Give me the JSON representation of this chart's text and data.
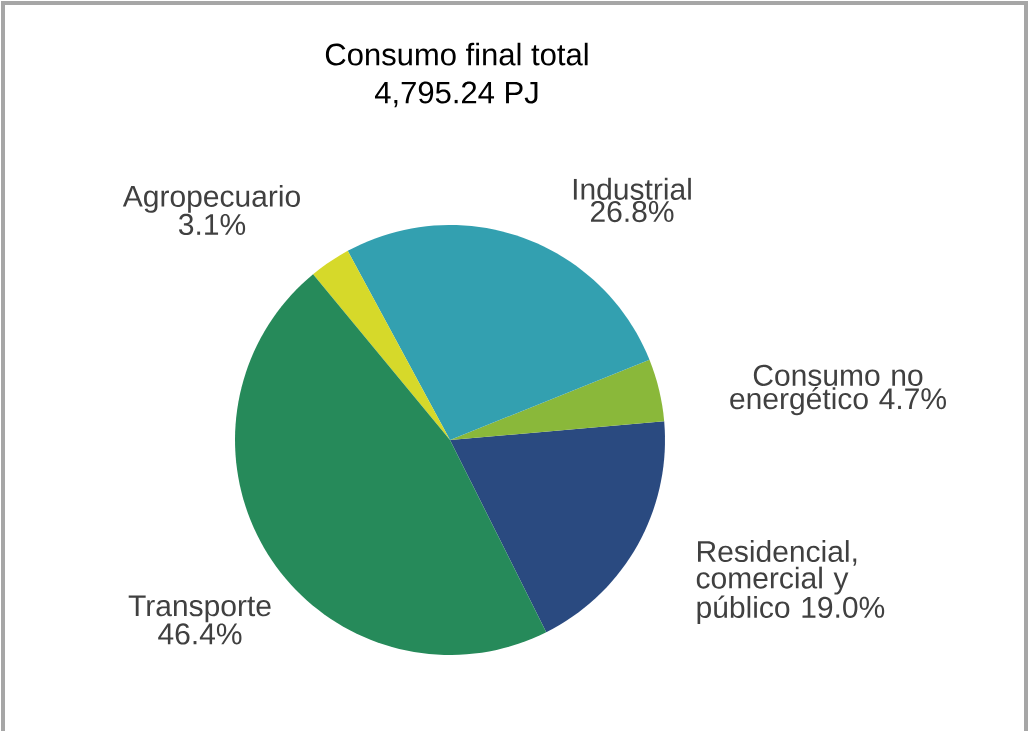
{
  "chart_data": {
    "type": "pie",
    "title": "Consumo final total",
    "subtitle": "4,795.24 PJ",
    "categories": [
      "Residencial, comercial y público",
      "Consumo no energético",
      "Industrial",
      "Agropecuario",
      "Transporte"
    ],
    "values": [
      19.0,
      4.7,
      26.8,
      3.1,
      46.4
    ],
    "value_labels": [
      "19.0%",
      "4.7%",
      "26.8%",
      "3.1%",
      "46.4%"
    ],
    "colors": [
      "#2a4a80",
      "#8ab83a",
      "#33a0b0",
      "#d6d92a",
      "#268a5a"
    ]
  }
}
